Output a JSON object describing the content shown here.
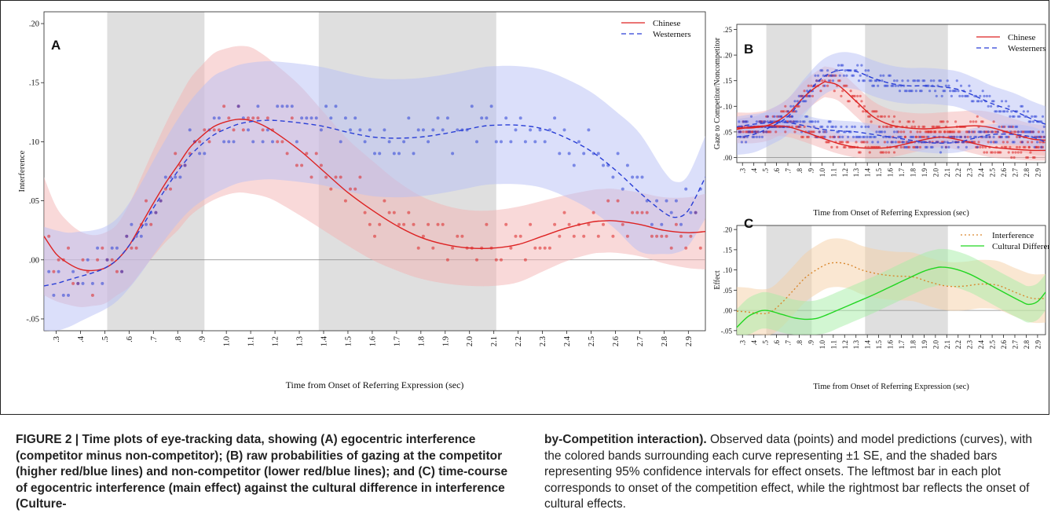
{
  "colors": {
    "chinese": "#dd2222",
    "westerners": "#2a3fd6",
    "chinese_band": "#f4b3b3",
    "westerners_band": "#b8bff5",
    "shade": "#d9d9d9",
    "interference": "#d9882e",
    "cultural_difference": "#22d622"
  },
  "chart_data": [
    {
      "panel": "A",
      "type": "line",
      "xlabel": "Time from Onset of Referring Expression (sec)",
      "ylabel": "Interference",
      "x_ticks": [
        ".3",
        ".4",
        ".5",
        ".6",
        ".7",
        ".8",
        ".9",
        "1.0",
        "1.1",
        "1.2",
        "1.3",
        "1.4",
        "1.5",
        "1.6",
        "1.7",
        "1.8",
        "1.9",
        "2.0",
        "2.1",
        "2.2",
        "2.3",
        "2.4",
        "2.5",
        "2.6",
        "2.7",
        "2.8",
        "2.9"
      ],
      "y_ticks": [
        ".20",
        ".15",
        ".10",
        ".05",
        ".00",
        "-.05"
      ],
      "xlim": [
        0.25,
        2.97
      ],
      "ylim": [
        -0.06,
        0.21
      ],
      "shaded_intervals": [
        [
          0.51,
          0.91
        ],
        [
          1.38,
          2.11
        ]
      ],
      "legend": [
        "Chinese",
        "Westerners"
      ],
      "legend_position": "top-right",
      "series": [
        {
          "name": "Chinese",
          "style": "solid",
          "x": [
            0.25,
            0.3,
            0.35,
            0.4,
            0.45,
            0.5,
            0.55,
            0.6,
            0.65,
            0.7,
            0.75,
            0.8,
            0.85,
            0.9,
            0.95,
            1.0,
            1.05,
            1.1,
            1.15,
            1.2,
            1.3,
            1.4,
            1.5,
            1.6,
            1.7,
            1.8,
            1.9,
            2.0,
            2.1,
            2.2,
            2.3,
            2.4,
            2.5,
            2.55,
            2.6,
            2.7,
            2.8,
            2.9,
            2.97
          ],
          "y": [
            0.02,
            0.005,
            -0.003,
            -0.008,
            -0.009,
            -0.007,
            0.0,
            0.012,
            0.03,
            0.048,
            0.065,
            0.08,
            0.095,
            0.105,
            0.113,
            0.117,
            0.119,
            0.118,
            0.114,
            0.108,
            0.093,
            0.075,
            0.057,
            0.042,
            0.029,
            0.019,
            0.013,
            0.01,
            0.01,
            0.013,
            0.02,
            0.027,
            0.032,
            0.033,
            0.033,
            0.03,
            0.025,
            0.023,
            0.024
          ],
          "band": [
            0.05,
            0.04,
            0.035,
            0.032,
            0.03,
            0.03,
            0.03,
            0.035,
            0.04,
            0.045,
            0.05,
            0.055,
            0.058,
            0.06,
            0.062,
            0.062,
            0.062,
            0.062,
            0.06,
            0.058,
            0.055,
            0.05,
            0.045,
            0.042,
            0.038,
            0.035,
            0.033,
            0.032,
            0.032,
            0.032,
            0.03,
            0.028,
            0.027,
            0.027,
            0.027,
            0.027,
            0.028,
            0.03,
            0.032
          ]
        },
        {
          "name": "Westerners",
          "style": "dashed",
          "x": [
            0.25,
            0.3,
            0.35,
            0.4,
            0.45,
            0.5,
            0.55,
            0.6,
            0.65,
            0.7,
            0.75,
            0.8,
            0.85,
            0.9,
            0.95,
            1.0,
            1.05,
            1.1,
            1.15,
            1.2,
            1.3,
            1.4,
            1.5,
            1.6,
            1.7,
            1.8,
            1.9,
            2.0,
            2.05,
            2.1,
            2.2,
            2.3,
            2.4,
            2.5,
            2.6,
            2.7,
            2.8,
            2.85,
            2.9,
            2.97
          ],
          "y": [
            -0.022,
            -0.02,
            -0.017,
            -0.014,
            -0.011,
            -0.007,
            0.0,
            0.012,
            0.027,
            0.044,
            0.06,
            0.075,
            0.088,
            0.098,
            0.106,
            0.111,
            0.115,
            0.117,
            0.118,
            0.118,
            0.116,
            0.113,
            0.108,
            0.104,
            0.103,
            0.104,
            0.107,
            0.111,
            0.113,
            0.114,
            0.114,
            0.111,
            0.103,
            0.092,
            0.076,
            0.057,
            0.04,
            0.036,
            0.042,
            0.07
          ],
          "band": [
            0.05,
            0.045,
            0.04,
            0.038,
            0.036,
            0.035,
            0.035,
            0.036,
            0.038,
            0.04,
            0.042,
            0.044,
            0.046,
            0.048,
            0.05,
            0.05,
            0.05,
            0.05,
            0.05,
            0.05,
            0.05,
            0.05,
            0.05,
            0.05,
            0.05,
            0.05,
            0.05,
            0.05,
            0.05,
            0.05,
            0.05,
            0.05,
            0.05,
            0.05,
            0.05,
            0.05,
            0.035,
            0.03,
            0.03,
            0.035
          ]
        }
      ]
    },
    {
      "panel": "B",
      "type": "line",
      "xlabel": "Time from Onset of Referring Expression (sec)",
      "ylabel": "Gaze to Competitor/Noncompetitor",
      "x_ticks": [
        ".3",
        ".4",
        ".5",
        ".6",
        ".7",
        ".8",
        ".9",
        "1.0",
        "1.1",
        "1.2",
        "1.3",
        "1.4",
        "1.5",
        "1.6",
        "1.7",
        "1.8",
        "1.9",
        "2.0",
        "2.1",
        "2.2",
        "2.3",
        "2.4",
        "2.5",
        "2.6",
        "2.7",
        "2.8",
        "2.9"
      ],
      "y_ticks": [
        ".25",
        ".20",
        ".15",
        ".10",
        ".05",
        ".00"
      ],
      "xlim": [
        0.25,
        2.97
      ],
      "ylim": [
        -0.01,
        0.26
      ],
      "shaded_intervals": [
        [
          0.51,
          0.91
        ],
        [
          1.38,
          2.11
        ]
      ],
      "legend": [
        "Chinese",
        "Westerners"
      ],
      "legend_position": "top-right",
      "series": [
        {
          "name": "Chinese",
          "style": "solid",
          "x": [
            0.25,
            0.4,
            0.55,
            0.7,
            0.85,
            1.0,
            1.05,
            1.15,
            1.3,
            1.45,
            1.6,
            1.75,
            1.9,
            2.05,
            2.2,
            2.35,
            2.5,
            2.7,
            2.85,
            2.97
          ],
          "y": [
            0.058,
            0.058,
            0.065,
            0.085,
            0.12,
            0.145,
            0.147,
            0.14,
            0.11,
            0.08,
            0.064,
            0.058,
            0.056,
            0.058,
            0.06,
            0.062,
            0.058,
            0.045,
            0.036,
            0.034
          ],
          "band": 0.03
        },
        {
          "name": "Chinese",
          "style": "solid",
          "x": [
            0.25,
            0.4,
            0.55,
            0.7,
            0.85,
            1.0,
            1.15,
            1.3,
            1.45,
            1.6,
            1.75,
            1.9,
            2.05,
            2.2,
            2.35,
            2.5,
            2.7,
            2.85,
            2.97
          ],
          "y": [
            0.055,
            0.06,
            0.062,
            0.06,
            0.05,
            0.038,
            0.027,
            0.02,
            0.018,
            0.02,
            0.027,
            0.035,
            0.04,
            0.035,
            0.027,
            0.02,
            0.016,
            0.014,
            0.014
          ],
          "band": 0.02
        },
        {
          "name": "Westerners",
          "style": "dashed",
          "x": [
            0.25,
            0.4,
            0.55,
            0.7,
            0.85,
            1.0,
            1.15,
            1.3,
            1.45,
            1.6,
            1.75,
            1.9,
            2.05,
            2.2,
            2.35,
            2.5,
            2.7,
            2.85,
            2.97
          ],
          "y": [
            0.04,
            0.045,
            0.06,
            0.08,
            0.12,
            0.155,
            0.17,
            0.168,
            0.155,
            0.145,
            0.14,
            0.14,
            0.138,
            0.133,
            0.12,
            0.105,
            0.09,
            0.075,
            0.065
          ],
          "band": 0.035
        },
        {
          "name": "Westerners",
          "style": "dashed",
          "x": [
            0.25,
            0.4,
            0.55,
            0.7,
            0.85,
            1.0,
            1.15,
            1.3,
            1.45,
            1.6,
            1.75,
            1.9,
            2.05,
            2.2,
            2.35,
            2.5,
            2.7,
            2.85,
            2.97
          ],
          "y": [
            0.06,
            0.065,
            0.068,
            0.068,
            0.062,
            0.055,
            0.052,
            0.05,
            0.045,
            0.04,
            0.035,
            0.03,
            0.028,
            0.03,
            0.038,
            0.045,
            0.045,
            0.04,
            0.03
          ],
          "band": 0.02
        }
      ]
    },
    {
      "panel": "C",
      "type": "line",
      "xlabel": "Time from Onset of Referring Expression (sec)",
      "ylabel": "Effect",
      "x_ticks": [
        ".3",
        ".4",
        ".5",
        ".6",
        ".7",
        ".8",
        ".9",
        "1.0",
        "1.1",
        "1.2",
        "1.3",
        "1.4",
        "1.5",
        "1.6",
        "1.7",
        "1.8",
        "1.9",
        "2.0",
        "2.1",
        "2.2",
        "2.3",
        "2.4",
        "2.5",
        "2.6",
        "2.7",
        "2.8",
        "2.9"
      ],
      "y_ticks": [
        ".20",
        ".15",
        ".10",
        ".05",
        ".00",
        "-.05"
      ],
      "xlim": [
        0.25,
        2.97
      ],
      "ylim": [
        -0.06,
        0.21
      ],
      "shaded_intervals": [
        [
          0.51,
          0.91
        ],
        [
          1.38,
          2.11
        ]
      ],
      "legend": [
        "Interference",
        "Cultural Difference"
      ],
      "legend_position": "top-right",
      "series": [
        {
          "name": "Interference",
          "style": "dotted",
          "x": [
            0.25,
            0.35,
            0.45,
            0.55,
            0.65,
            0.75,
            0.85,
            0.95,
            1.05,
            1.15,
            1.25,
            1.35,
            1.5,
            1.65,
            1.8,
            1.95,
            2.1,
            2.25,
            2.4,
            2.55,
            2.7,
            2.85,
            2.97
          ],
          "y": [
            -0.002,
            -0.004,
            -0.008,
            -0.004,
            0.02,
            0.05,
            0.08,
            0.1,
            0.115,
            0.118,
            0.112,
            0.1,
            0.09,
            0.085,
            0.083,
            0.07,
            0.06,
            0.06,
            0.065,
            0.062,
            0.045,
            0.03,
            0.03
          ],
          "band": 0.06
        },
        {
          "name": "Cultural Difference",
          "style": "solid",
          "x": [
            0.25,
            0.35,
            0.45,
            0.5,
            0.55,
            0.65,
            0.75,
            0.85,
            0.95,
            1.05,
            1.15,
            1.3,
            1.45,
            1.6,
            1.75,
            1.9,
            2.0,
            2.05,
            2.15,
            2.3,
            2.45,
            2.6,
            2.75,
            2.82,
            2.9,
            2.97
          ],
          "y": [
            -0.042,
            -0.015,
            -0.002,
            0.0,
            -0.002,
            -0.01,
            -0.018,
            -0.022,
            -0.02,
            -0.01,
            0.002,
            0.02,
            0.038,
            0.058,
            0.078,
            0.097,
            0.105,
            0.107,
            0.104,
            0.09,
            0.068,
            0.045,
            0.023,
            0.015,
            0.022,
            0.045
          ],
          "band": 0.045
        }
      ]
    }
  ],
  "caption": {
    "label": "FIGURE 2 | ",
    "left_text": "Time plots of eye-tracking data, showing (A) egocentric interference (competitor minus non-competitor); (B) raw probabilities of gazing at the competitor (higher red/blue lines) and non-competitor (lower red/blue lines); and (C) time-course of egocentric interference (main effect) against the cultural difference in interference (Culture-",
    "right_bold": "by-Competition interaction).",
    "right_text": " Observed data (points) and model predictions (curves), with the colored bands surrounding each curve representing ±1 SE, and the shaded bars representing 95% confidence intervals for effect onsets. The leftmost bar in each plot corresponds to onset of the competition effect, while the rightmost bar reflects the onset of cultural effects."
  }
}
